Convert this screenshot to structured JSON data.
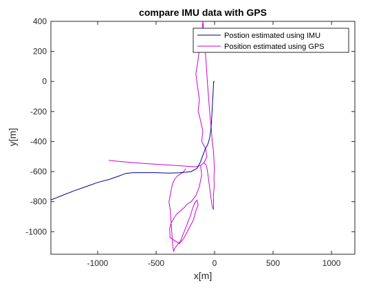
{
  "chart_data": {
    "type": "line",
    "title": "compare IMU data with GPS",
    "xlabel": "x[m]",
    "ylabel": "y[m]",
    "xlim": [
      -1400,
      1200
    ],
    "ylim": [
      -1150,
      400
    ],
    "xticks": [
      -1000,
      -500,
      0,
      500,
      1000
    ],
    "yticks": [
      -1000,
      -800,
      -600,
      -400,
      -200,
      0,
      200,
      400
    ],
    "grid": false,
    "legend_position": "top-right",
    "series": [
      {
        "name": "Postion estimated using IMU",
        "color": "#00007f",
        "x": [
          -1400,
          -1300,
          -1200,
          -1100,
          -1000,
          -900,
          -820,
          -760,
          -700,
          -600,
          -500,
          -400,
          -300,
          -200,
          -150,
          -120,
          -95,
          -78,
          -62,
          -50,
          -40,
          -32,
          -26,
          -22,
          -18,
          -14,
          -12,
          -10,
          -8,
          -5,
          -2
        ],
        "y": [
          -788,
          -758,
          -727,
          -700,
          -672,
          -652,
          -630,
          -612,
          -607,
          -607,
          -607,
          -610,
          -608,
          -600,
          -578,
          -535,
          -480,
          -445,
          -425,
          -400,
          -365,
          -320,
          -260,
          -210,
          -150,
          -100,
          -60,
          -30,
          -5,
          0,
          -5
        ]
      },
      {
        "name": "Position estimated using GPS",
        "color": "#cc00cc",
        "x": [
          -905,
          -820,
          -700,
          -560,
          -420,
          -320,
          -230,
          -160,
          -120,
          -90,
          -65,
          -75,
          -110,
          -100,
          -120,
          -140,
          -130,
          -145,
          -160,
          -140,
          -125,
          -110,
          -100,
          -85,
          -70,
          -60,
          -50,
          -40,
          -30,
          -25,
          -20,
          -10,
          -5,
          -2,
          -5,
          -3,
          -10,
          -8,
          -10,
          -18,
          -30,
          -40,
          -50,
          -60,
          -70,
          -90,
          -105,
          -120,
          -110,
          -130,
          -160,
          -200,
          -240,
          -260,
          -290,
          -320,
          -340,
          -370,
          -385,
          -380,
          -300,
          -260,
          -220,
          -180,
          -160,
          -140,
          -150,
          -170,
          -190,
          -210,
          -230,
          -250,
          -265,
          -280,
          -290,
          -310,
          -320,
          -330,
          -340,
          -345,
          -350,
          -355,
          -360,
          -362,
          -365,
          -370,
          -375,
          -380,
          -390,
          -380,
          -370,
          -360,
          -340,
          -320,
          -300,
          -290,
          -280,
          -270,
          -265,
          -260,
          -255,
          -250,
          -245
        ],
        "y": [
          -525,
          -532,
          -540,
          -548,
          -555,
          -560,
          -565,
          -568,
          -560,
          -540,
          -500,
          -450,
          -400,
          -330,
          -260,
          -200,
          -120,
          -40,
          50,
          150,
          250,
          320,
          400,
          260,
          100,
          -20,
          -120,
          -220,
          -300,
          -350,
          -400,
          -460,
          -520,
          -580,
          -640,
          -700,
          -760,
          -820,
          -850,
          -840,
          -780,
          -720,
          -660,
          -600,
          -560,
          -540,
          -550,
          -560,
          -620,
          -700,
          -760,
          -800,
          -820,
          -840,
          -860,
          -880,
          -900,
          -940,
          -980,
          -1040,
          -1080,
          -1040,
          -980,
          -920,
          -860,
          -820,
          -790,
          -810,
          -850,
          -900,
          -940,
          -980,
          -1010,
          -1040,
          -1060,
          -1080,
          -1090,
          -1100,
          -1110,
          -1120,
          -1130,
          -1110,
          -1080,
          -1050,
          -1010,
          -960,
          -900,
          -850,
          -800,
          -760,
          -720,
          -680,
          -650,
          -630,
          -620,
          -615,
          -610,
          -605,
          -600,
          -595,
          -590,
          -585,
          -580
        ]
      }
    ]
  }
}
